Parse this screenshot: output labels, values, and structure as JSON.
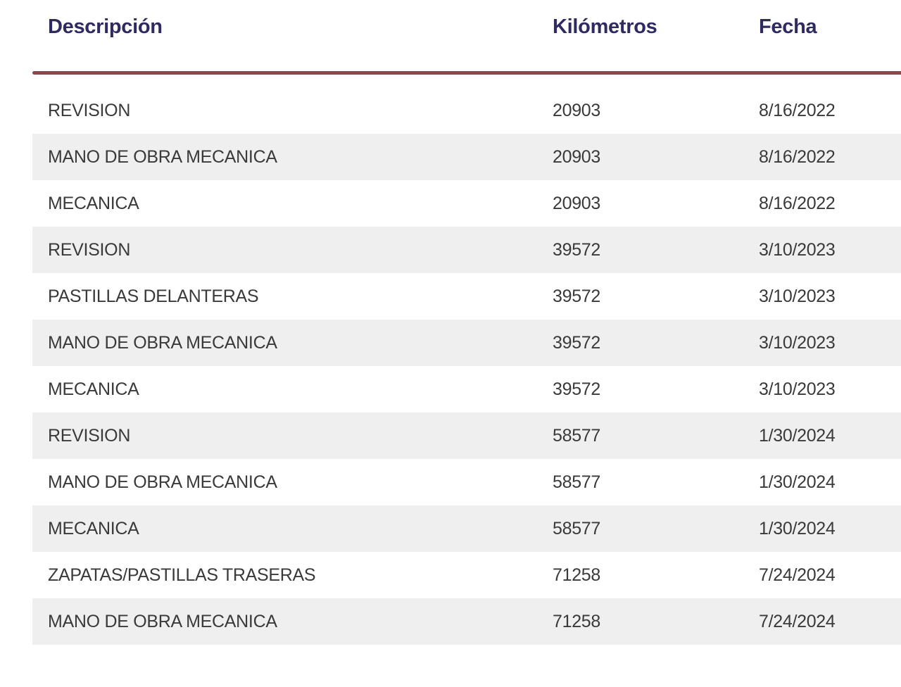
{
  "colors": {
    "background": "#ffffff",
    "header_text": "#2f2a60",
    "body_text": "#3a3a3a",
    "stripe": "#efefef",
    "divider": "#94434c"
  },
  "table": {
    "columns": [
      {
        "label": "Descripción"
      },
      {
        "label": "Kilómetros"
      },
      {
        "label": "Fecha"
      }
    ],
    "rows": [
      {
        "description": "REVISION",
        "kilometers": "20903",
        "date": "8/16/2022"
      },
      {
        "description": "MANO DE OBRA MECANICA",
        "kilometers": "20903",
        "date": "8/16/2022"
      },
      {
        "description": "MECANICA",
        "kilometers": "20903",
        "date": "8/16/2022"
      },
      {
        "description": "REVISION",
        "kilometers": "39572",
        "date": "3/10/2023"
      },
      {
        "description": "PASTILLAS DELANTERAS",
        "kilometers": "39572",
        "date": "3/10/2023"
      },
      {
        "description": "MANO DE OBRA MECANICA",
        "kilometers": "39572",
        "date": "3/10/2023"
      },
      {
        "description": "MECANICA",
        "kilometers": "39572",
        "date": "3/10/2023"
      },
      {
        "description": "REVISION",
        "kilometers": "58577",
        "date": "1/30/2024"
      },
      {
        "description": "MANO DE OBRA MECANICA",
        "kilometers": "58577",
        "date": "1/30/2024"
      },
      {
        "description": "MECANICA",
        "kilometers": "58577",
        "date": "1/30/2024"
      },
      {
        "description": "ZAPATAS/PASTILLAS TRASERAS",
        "kilometers": "71258",
        "date": "7/24/2024"
      },
      {
        "description": "MANO DE OBRA MECANICA",
        "kilometers": "71258",
        "date": "7/24/2024"
      }
    ]
  }
}
